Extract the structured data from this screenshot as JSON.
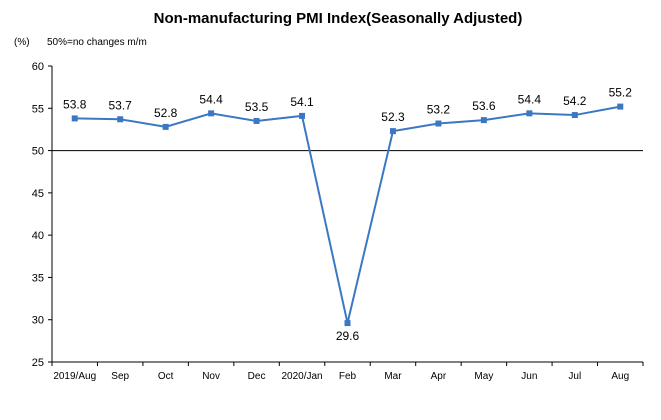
{
  "chart_data": {
    "type": "line",
    "title": "Non-manufacturing PMI Index(Seasonally Adjusted)",
    "ylabel": "(%)",
    "annotation": "50%=no changes  m/m",
    "categories": [
      "2019/Aug",
      "Sep",
      "Oct",
      "Nov",
      "Dec",
      "2020/Jan",
      "Feb",
      "Mar",
      "Apr",
      "May",
      "Jun",
      "Jul",
      "Aug"
    ],
    "values": [
      53.8,
      53.7,
      52.8,
      54.4,
      53.5,
      54.1,
      29.6,
      52.3,
      53.2,
      53.6,
      54.4,
      54.2,
      55.2
    ],
    "data_labels": [
      "53.8",
      "53.7",
      "52.8",
      "54.4",
      "53.5",
      "54.1",
      "29.6",
      "52.3",
      "53.2",
      "53.6",
      "54.4",
      "54.2",
      "55.2"
    ],
    "ylim": [
      25,
      60
    ],
    "yticks": [
      25,
      30,
      35,
      40,
      45,
      50,
      55,
      60
    ],
    "reference_line": 50,
    "grid": false,
    "legend": "none",
    "line_color": "#3A78C3",
    "axis_color": "#000000"
  }
}
